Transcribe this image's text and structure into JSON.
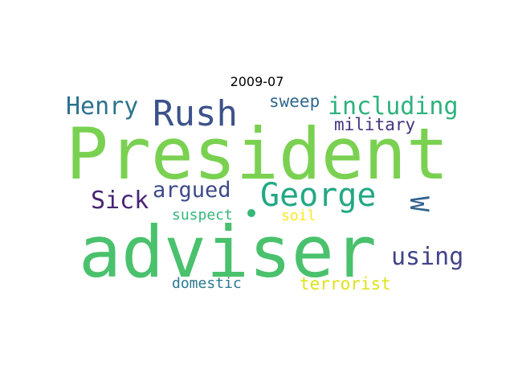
{
  "title": "2009-07",
  "words": [
    {
      "text": "President",
      "color": "#7ad151",
      "rotated": false
    },
    {
      "text": "adviser",
      "color": "#4ac16d",
      "rotated": false
    },
    {
      "text": "Rush",
      "color": "#3b528b",
      "rotated": false
    },
    {
      "text": "George",
      "color": "#22a884",
      "rotated": false
    },
    {
      "text": "including",
      "color": "#2db27d",
      "rotated": false
    },
    {
      "text": "Henry",
      "color": "#2c728e",
      "rotated": false
    },
    {
      "text": "W",
      "color": "#33638d",
      "rotated": true
    },
    {
      "text": "Sick",
      "color": "#482475",
      "rotated": false
    },
    {
      "text": "argued",
      "color": "#3e4a89",
      "rotated": false
    },
    {
      "text": "using",
      "color": "#414487",
      "rotated": false
    },
    {
      "text": "sweep",
      "color": "#31688e",
      "rotated": false
    },
    {
      "text": "military",
      "color": "#46327e",
      "rotated": false
    },
    {
      "text": "suspect",
      "color": "#35b779",
      "rotated": false
    },
    {
      "text": "soil",
      "color": "#fde725",
      "rotated": false
    },
    {
      "text": "domestic",
      "color": "#2a788e",
      "rotated": false
    },
    {
      "text": "terrorist",
      "color": "#dde318",
      "rotated": false
    }
  ]
}
